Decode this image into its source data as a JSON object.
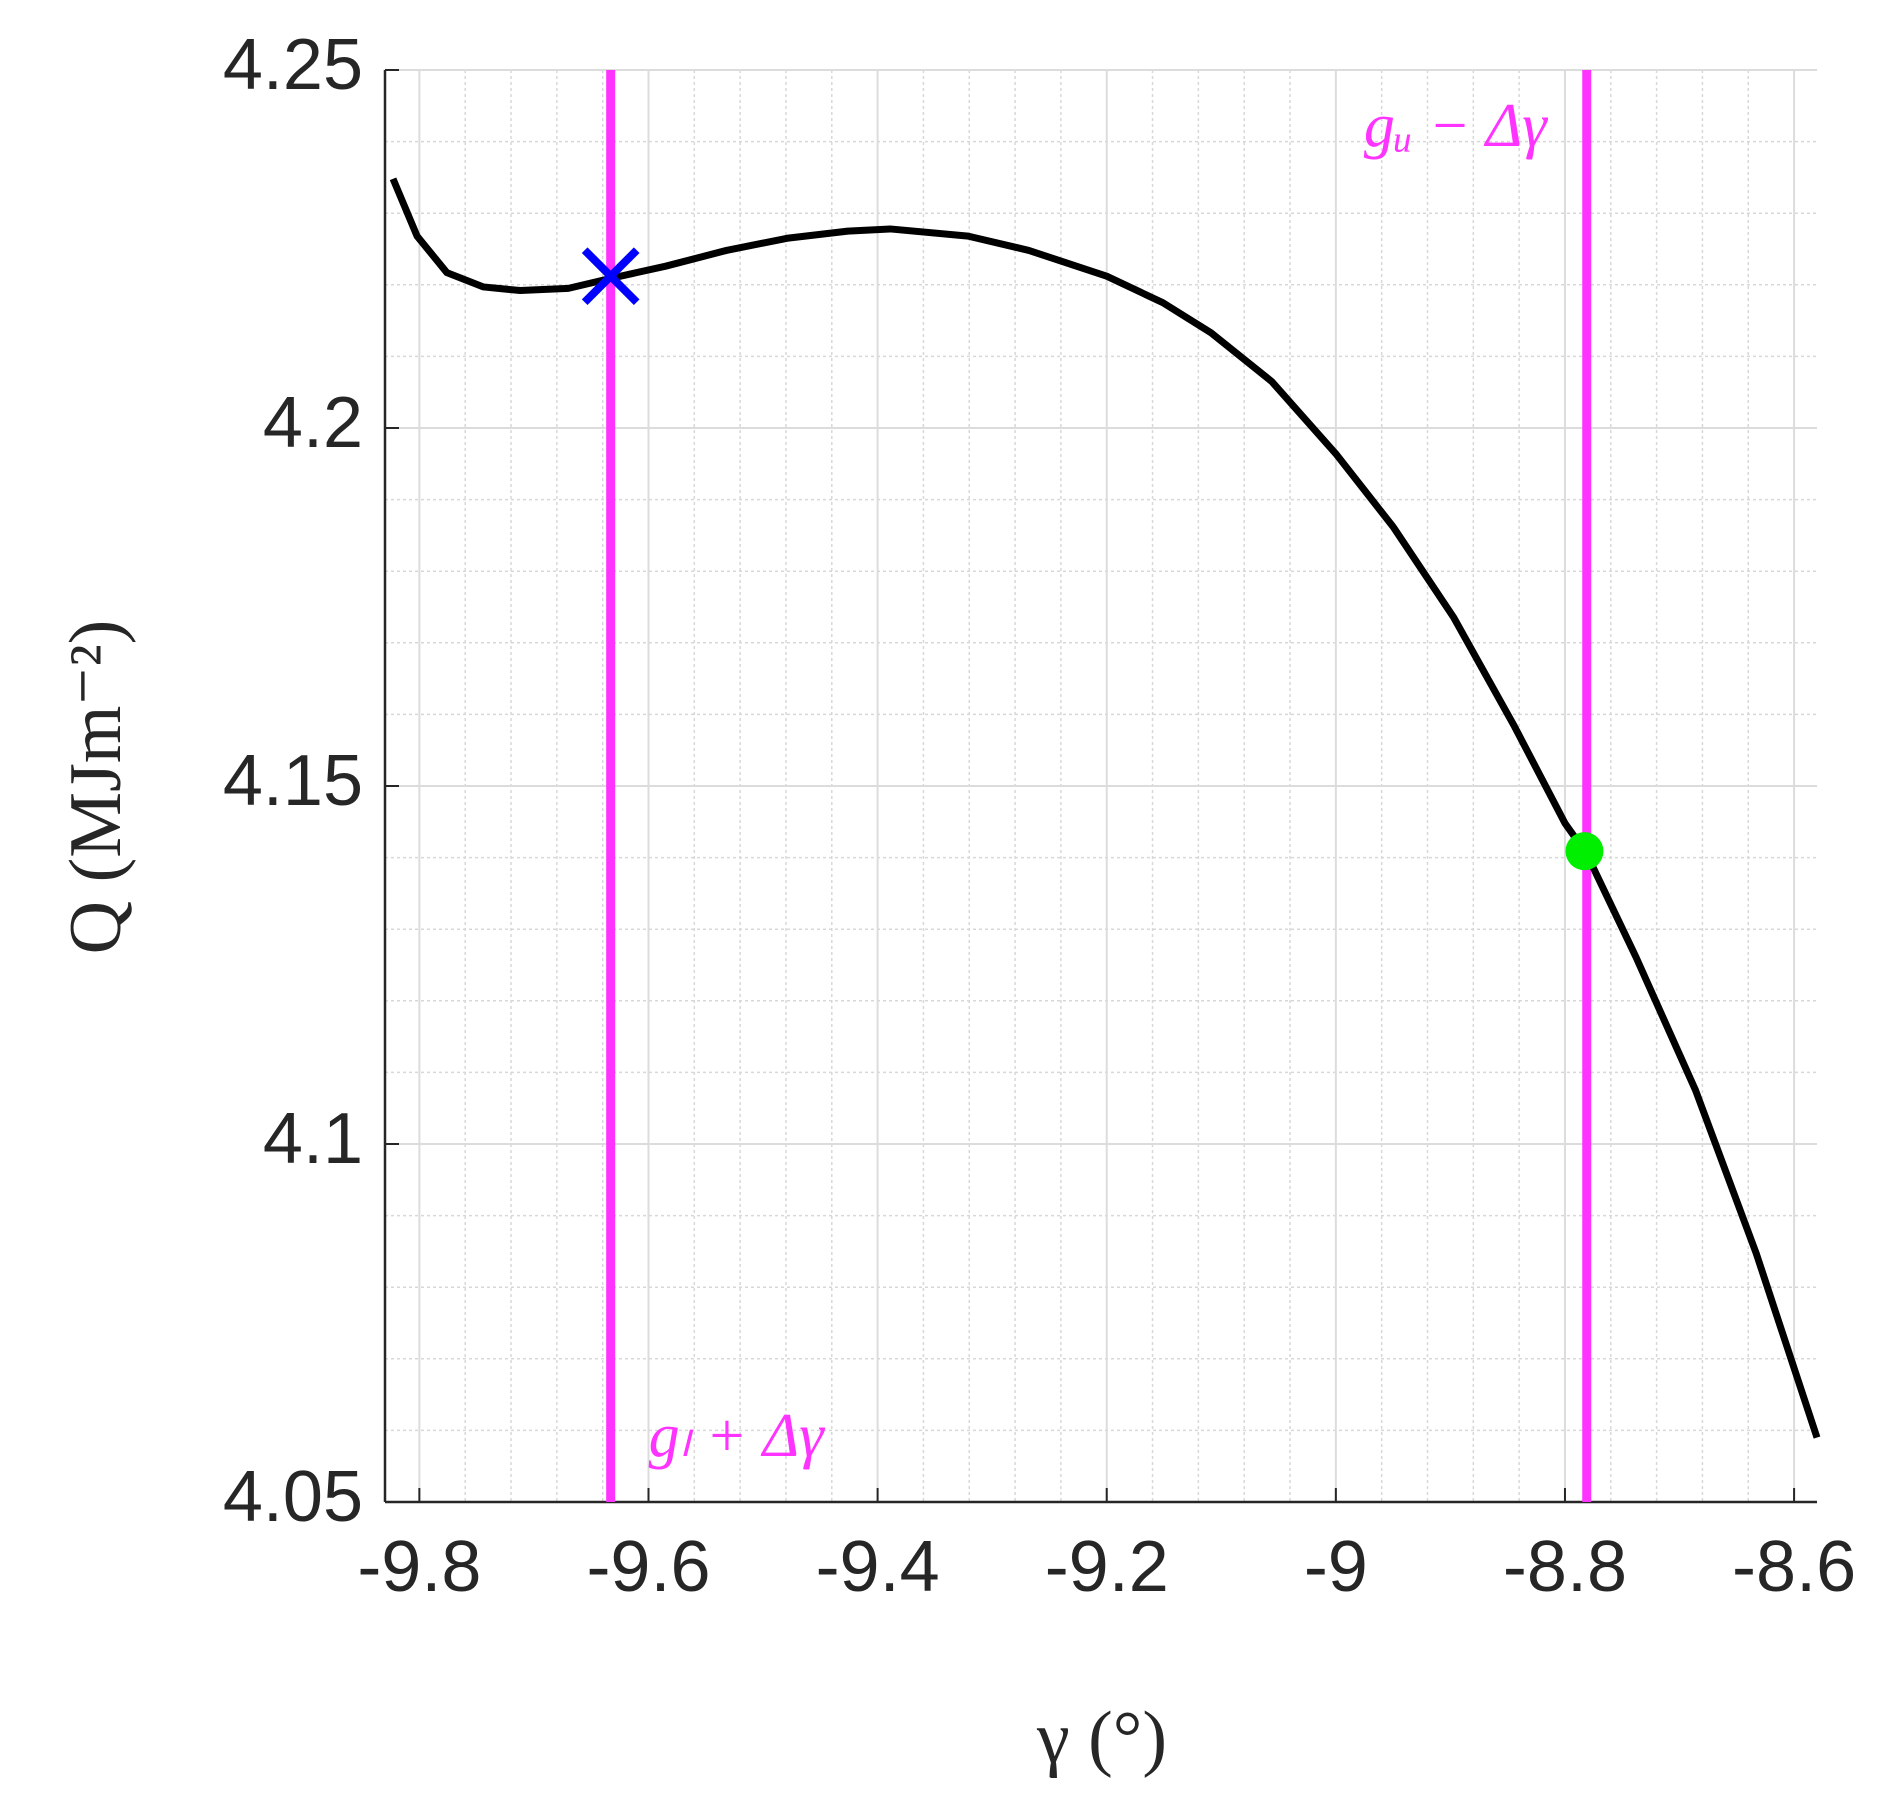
{
  "chart_data": {
    "type": "line",
    "xlabel": "γ (°)",
    "ylabel": "Q (MJm⁻²)",
    "xlim": [
      -9.83,
      -8.58
    ],
    "ylim": [
      4.05,
      4.25
    ],
    "xticks": [
      -9.8,
      -9.6,
      -9.4,
      -9.2,
      -9,
      -8.8,
      -8.6
    ],
    "yticks": [
      4.05,
      4.1,
      4.15,
      4.2,
      4.25
    ],
    "xminorticks": [
      -9.76,
      -9.72,
      -9.68,
      -9.64,
      -9.56,
      -9.52,
      -9.48,
      -9.44,
      -9.36,
      -9.32,
      -9.28,
      -9.24,
      -9.16,
      -9.12,
      -9.08,
      -9.04,
      -8.96,
      -8.92,
      -8.88,
      -8.84,
      -8.76,
      -8.72,
      -8.68,
      -8.64
    ],
    "yminorticks": [
      4.06,
      4.07,
      4.08,
      4.09,
      4.11,
      4.12,
      4.13,
      4.14,
      4.16,
      4.17,
      4.18,
      4.19,
      4.21,
      4.22,
      4.23,
      4.24
    ],
    "grid": true,
    "series": [
      {
        "color": "#000000",
        "x": [
          -9.823,
          -9.802,
          -9.776,
          -9.744,
          -9.712,
          -9.67,
          -9.633,
          -9.585,
          -9.532,
          -9.479,
          -9.426,
          -9.389,
          -9.321,
          -9.268,
          -9.2,
          -9.151,
          -9.109,
          -9.056,
          -9.0,
          -8.95,
          -8.897,
          -8.844,
          -8.8,
          -8.781,
          -8.738,
          -8.686,
          -8.633,
          -8.58
        ],
        "values": [
          4.2348,
          4.2268,
          4.2217,
          4.2197,
          4.2192,
          4.2195,
          4.2209,
          4.2226,
          4.2248,
          4.2265,
          4.2275,
          4.2278,
          4.2268,
          4.2248,
          4.2212,
          4.2175,
          4.2133,
          4.2065,
          4.1964,
          4.1862,
          4.1735,
          4.1583,
          4.1448,
          4.1405,
          4.1261,
          4.1075,
          4.0847,
          4.059
        ]
      }
    ],
    "vlines": [
      {
        "x": -9.633,
        "color": "#ff33ff",
        "label": "gₗ + Δγ"
      },
      {
        "x": -8.781,
        "color": "#ff33ff",
        "label": "gᵤ − Δγ"
      }
    ],
    "markers": [
      {
        "x": -9.633,
        "y": 4.2212,
        "shape": "x",
        "color": "#0000ff"
      },
      {
        "x": -8.783,
        "y": 4.1409,
        "shape": "circle",
        "color": "#00ee00"
      }
    ]
  }
}
